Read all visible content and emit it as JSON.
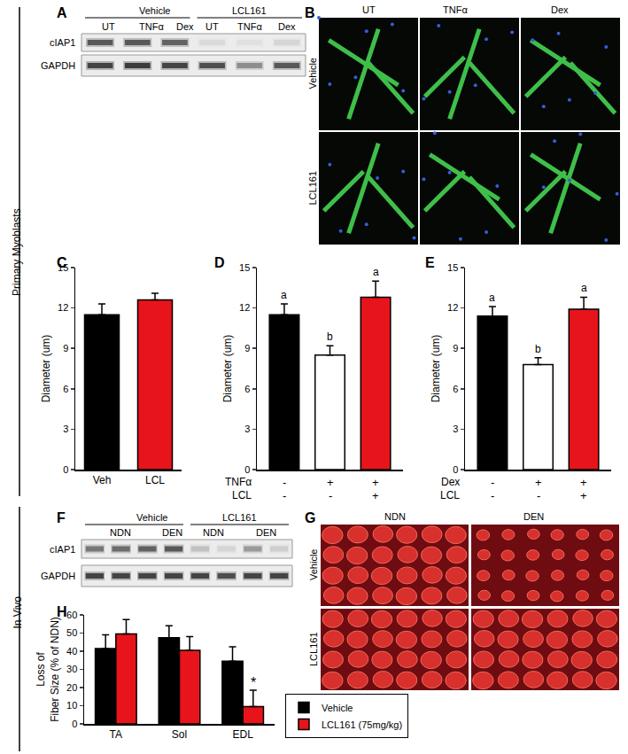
{
  "side_labels": [
    "Primary Myoblasts",
    "In Vivo"
  ],
  "blots": [
    {
      "label": "A",
      "groups": [
        "Vehicle",
        "LCL161"
      ],
      "lanes": [
        "UT",
        "TNFα",
        "Dex",
        "UT",
        "TNFα",
        "Dex"
      ],
      "rows": [
        "cIAP1",
        "GAPDH"
      ]
    },
    {
      "label": "F",
      "groups": [
        "Vehicle",
        "LCL161"
      ],
      "lanes": [
        "NDN",
        "DEN",
        "NDN",
        "DEN"
      ],
      "rows": [
        "cIAP1",
        "GAPDH"
      ]
    }
  ],
  "images": [
    {
      "label": "B",
      "columns": [
        "UT",
        "TNFα",
        "Dex"
      ],
      "rows": [
        "Vehicle",
        "LCL161"
      ]
    },
    {
      "label": "G",
      "columns": [
        "NDN",
        "DEN"
      ],
      "rows": [
        "Vehicle",
        "LCL161"
      ]
    }
  ],
  "chart_data": [
    {
      "label": "C",
      "type": "bar",
      "categories": [
        "Veh",
        "LCL"
      ],
      "values": [
        11.5,
        12.6
      ],
      "errors": [
        0.8,
        0.5
      ],
      "colors": [
        "#000000",
        "#e8141b"
      ],
      "y_label": "Diameter (um)",
      "ylim": [
        0,
        15
      ],
      "yticks": [
        0,
        3,
        6,
        9,
        12,
        15
      ]
    },
    {
      "label": "D",
      "type": "bar",
      "categories": [
        null,
        null,
        null
      ],
      "values": [
        11.5,
        8.5,
        12.8
      ],
      "errors": [
        0.8,
        0.7,
        1.2
      ],
      "colors": [
        "#000000",
        "#ffffff",
        "#e8141b"
      ],
      "significance": [
        "a",
        "b",
        "a"
      ],
      "condition_rows": [
        {
          "label": "TNFα",
          "values": [
            "-",
            "+",
            "+"
          ]
        },
        {
          "label": "LCL",
          "values": [
            "-",
            "-",
            "+"
          ]
        }
      ],
      "y_label": "Diameter (um)",
      "ylim": [
        0,
        15
      ],
      "yticks": [
        0,
        3,
        6,
        9,
        12,
        15
      ],
      "tick_labels": "y"
    },
    {
      "label": "E",
      "type": "bar",
      "categories": [
        null,
        null,
        null
      ],
      "values": [
        11.4,
        7.8,
        11.9
      ],
      "errors": [
        0.7,
        0.5,
        0.9
      ],
      "colors": [
        "#000000",
        "#ffffff",
        "#e8141b"
      ],
      "significance": [
        "a",
        "b",
        "a"
      ],
      "condition_rows": [
        {
          "label": "Dex",
          "values": [
            "-",
            "+",
            "+"
          ]
        },
        {
          "label": "LCL",
          "values": [
            "-",
            "-",
            "+"
          ]
        }
      ],
      "y_label": "Diameter (um)",
      "ylim": [
        0,
        15
      ],
      "yticks": [
        0,
        3,
        6,
        9,
        12,
        15
      ],
      "tick_labels": "y"
    },
    {
      "label": "H",
      "type": "bar",
      "categories": [
        "TA",
        "Sol",
        "EDL"
      ],
      "series": [
        {
          "name": "Vehicle",
          "color": "#000000",
          "values": [
            41.5,
            47.5,
            34.5
          ],
          "errors": [
            7.5,
            6.5,
            8.0
          ]
        },
        {
          "name": "LCL161 (75mg/kg)",
          "color": "#e8141b",
          "values": [
            49.5,
            40.5,
            9.5
          ],
          "errors": [
            8.0,
            7.5,
            9.0
          ]
        }
      ],
      "annotations": [
        {
          "category": "EDL",
          "series": "LCL161 (75mg/kg)",
          "text": "*"
        }
      ],
      "y_label": [
        "Loss of",
        "Fiber Size (% of NDN)"
      ],
      "ylim": [
        0,
        60
      ],
      "yticks": [
        0,
        10,
        20,
        30,
        40,
        50,
        60
      ],
      "legend": "right"
    }
  ]
}
